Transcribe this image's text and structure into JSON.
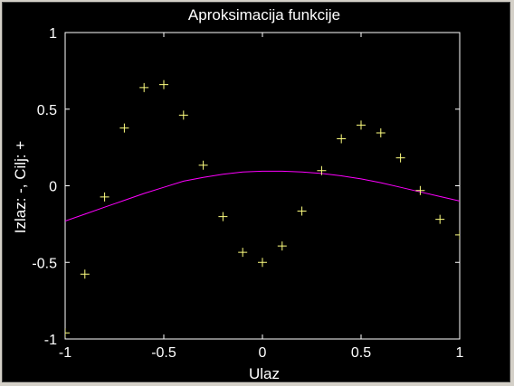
{
  "chart_data": {
    "type": "line",
    "title": "Aproksimacija funkcije",
    "xlabel": "Ulaz",
    "ylabel": "Izlaz: -,  Cilj: +",
    "xlim": [
      -1,
      1
    ],
    "ylim": [
      -1,
      1
    ],
    "xticks": [
      -1,
      -0.5,
      0,
      0.5,
      1
    ],
    "yticks": [
      -1,
      -0.5,
      0,
      0.5,
      1
    ],
    "xtick_labels": [
      "-1",
      "-0.5",
      "0",
      "0.5",
      "1"
    ],
    "ytick_labels": [
      "-1",
      "-0.5",
      "0",
      "0.5",
      "1"
    ],
    "grid": false,
    "colors": {
      "background": "#000000",
      "axes": "#ffffff",
      "text": "#ffffff",
      "targets": "#ffff80",
      "output": "#ff00ff"
    },
    "series": [
      {
        "marker": "+",
        "x": [
          -1,
          -0.9,
          -0.8,
          -0.7,
          -0.6,
          -0.5,
          -0.4,
          -0.3,
          -0.2,
          -0.1,
          0,
          0.1,
          0.2,
          0.3,
          0.4,
          0.5,
          0.6,
          0.7,
          0.8,
          0.9,
          1
        ],
        "y": [
          -0.96,
          -0.577,
          -0.073,
          0.377,
          0.641,
          0.66,
          0.461,
          0.134,
          -0.201,
          -0.434,
          -0.5,
          -0.393,
          -0.165,
          0.099,
          0.307,
          0.396,
          0.345,
          0.182,
          -0.031,
          -0.219,
          -0.321
        ]
      },
      {
        "marker": "-",
        "x": [
          -1,
          -0.9,
          -0.8,
          -0.7,
          -0.6,
          -0.5,
          -0.4,
          -0.3,
          -0.2,
          -0.1,
          0,
          0.1,
          0.2,
          0.3,
          0.4,
          0.5,
          0.6,
          0.7,
          0.8,
          0.9,
          1
        ],
        "y": [
          -0.23,
          -0.185,
          -0.14,
          -0.095,
          -0.05,
          -0.01,
          0.03,
          0.055,
          0.075,
          0.09,
          0.095,
          0.095,
          0.09,
          0.08,
          0.065,
          0.045,
          0.02,
          -0.01,
          -0.04,
          -0.07,
          -0.1
        ]
      }
    ]
  }
}
